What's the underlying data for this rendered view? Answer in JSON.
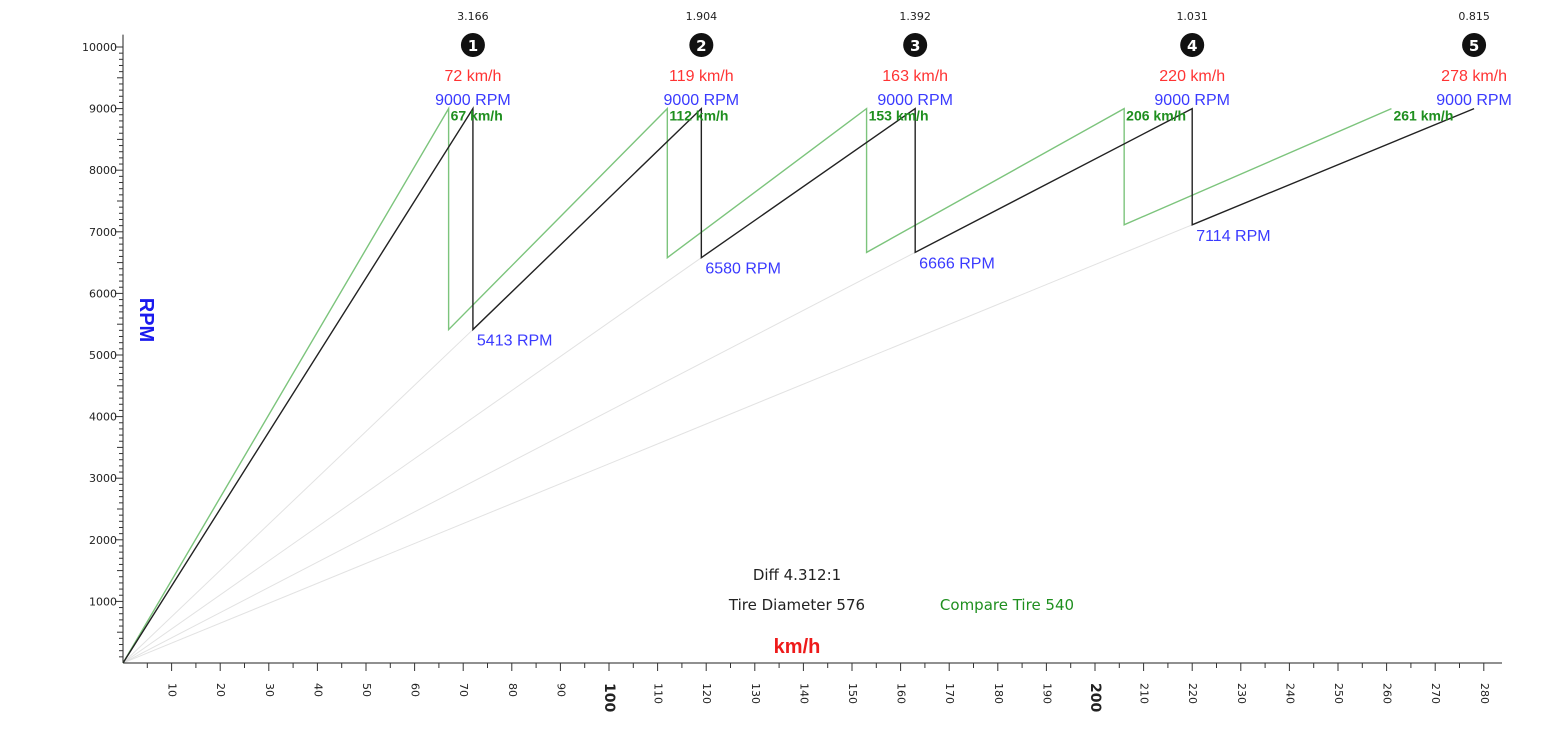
{
  "chart_data": {
    "type": "line",
    "xlabel": "km/h",
    "ylabel": "RPM",
    "xlim": [
      0,
      285
    ],
    "ylim": [
      0,
      10200
    ],
    "x_ticks": [
      10,
      20,
      30,
      40,
      50,
      60,
      70,
      80,
      90,
      100,
      110,
      120,
      130,
      140,
      150,
      160,
      170,
      180,
      190,
      200,
      210,
      220,
      230,
      240,
      250,
      260,
      270,
      280
    ],
    "x_major_ticks": [
      100,
      200
    ],
    "y_ticks": [
      1000,
      2000,
      3000,
      4000,
      5000,
      6000,
      7000,
      8000,
      9000,
      10000
    ],
    "gears": [
      {
        "number": "1",
        "ratio": "3.166",
        "top_speed": 72,
        "top_speed_label": "72 km/h",
        "shift_rpm": 9000,
        "shift_rpm_label": "9000 RPM",
        "compare_speed": 67,
        "compare_speed_label": "67 km/h"
      },
      {
        "number": "2",
        "ratio": "1.904",
        "top_speed": 119,
        "top_speed_label": "119 km/h",
        "shift_rpm": 9000,
        "shift_rpm_label": "9000 RPM",
        "compare_speed": 112,
        "compare_speed_label": "112 km/h"
      },
      {
        "number": "3",
        "ratio": "1.392",
        "top_speed": 163,
        "top_speed_label": "163 km/h",
        "shift_rpm": 9000,
        "shift_rpm_label": "9000 RPM",
        "compare_speed": 153,
        "compare_speed_label": "153 km/h"
      },
      {
        "number": "4",
        "ratio": "1.031",
        "top_speed": 220,
        "top_speed_label": "220 km/h",
        "shift_rpm": 9000,
        "shift_rpm_label": "9000 RPM",
        "compare_speed": 206,
        "compare_speed_label": "206 km/h"
      },
      {
        "number": "5",
        "ratio": "0.815",
        "top_speed": 278,
        "top_speed_label": "278 km/h",
        "shift_rpm": 9000,
        "shift_rpm_label": "9000 RPM",
        "compare_speed": 261,
        "compare_speed_label": "261 km/h"
      }
    ],
    "drop_rpms": [
      {
        "speed": 72,
        "rpm": 5413,
        "label": "5413 RPM"
      },
      {
        "speed": 119,
        "rpm": 6580,
        "label": "6580 RPM"
      },
      {
        "speed": 163,
        "rpm": 6666,
        "label": "6666 RPM"
      },
      {
        "speed": 220,
        "rpm": 7114,
        "label": "7114 RPM"
      }
    ],
    "compare_drop_rpms": [
      5413,
      6580,
      6666,
      7114
    ],
    "diff_label": "Diff 4.312:1",
    "tire_label": "Tire Diameter 576",
    "compare_tire_label": "Compare Tire 540",
    "colors": {
      "main_line": "#222222",
      "compare_line": "#7cc47c",
      "guide_line": "#e2e2e2",
      "speed_text": "#ff3333",
      "rpm_text": "#3a3aff",
      "compare_text": "#1f8f1f"
    }
  }
}
